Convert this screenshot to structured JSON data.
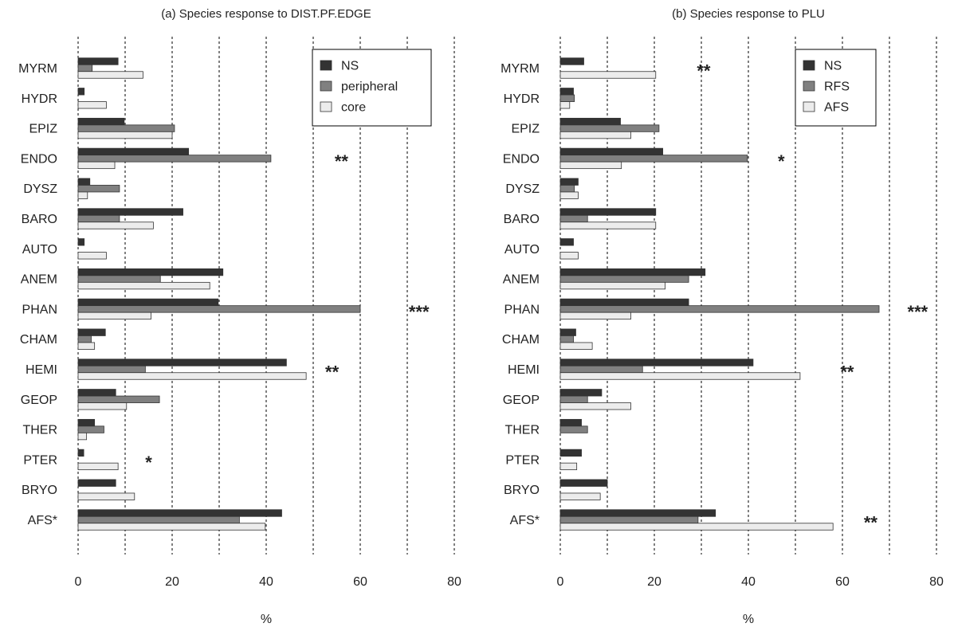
{
  "chart_data": [
    {
      "type": "bar",
      "orientation": "horizontal",
      "title": "(a) Species response to DIST.PF.EDGE",
      "xlabel": "%",
      "xlim": [
        0,
        80
      ],
      "xticks": [
        0,
        20,
        40,
        60,
        80
      ],
      "grid": "vertical dashed every 10",
      "legend_position": "top-right",
      "categories": [
        "MYRM",
        "HYDR",
        "EPIZ",
        "ENDO",
        "DYSZ",
        "BARO",
        "AUTO",
        "ANEM",
        "PHAN",
        "CHAM",
        "HEMI",
        "GEOP",
        "THER",
        "PTER",
        "BRYO",
        "AFS*"
      ],
      "series": [
        {
          "name": "NS",
          "color": "#333333",
          "values": [
            8.5,
            1.3,
            9.8,
            23.5,
            2.5,
            22.3,
            1.3,
            30.8,
            29.8,
            5.8,
            44.3,
            8.0,
            3.5,
            1.2,
            8.0,
            43.3
          ]
        },
        {
          "name": "peripheral",
          "color": "#808080",
          "values": [
            3.0,
            0,
            20.5,
            41.0,
            8.8,
            8.8,
            0,
            17.5,
            60.0,
            2.8,
            14.3,
            17.3,
            5.5,
            0,
            0,
            34.3
          ]
        },
        {
          "name": "core",
          "color": "#ececec",
          "values": [
            13.8,
            6.0,
            20.0,
            7.8,
            2.0,
            16.0,
            6.0,
            28.0,
            15.5,
            3.5,
            48.5,
            10.3,
            1.8,
            8.5,
            12.0,
            39.8
          ]
        }
      ],
      "annotations": [
        {
          "category": "ENDO",
          "x": 56,
          "text": "**"
        },
        {
          "category": "PHAN",
          "x": 72.5,
          "text": "***"
        },
        {
          "category": "HEMI",
          "x": 54,
          "text": "**"
        },
        {
          "category": "PTER",
          "x": 15,
          "text": "*"
        }
      ]
    },
    {
      "type": "bar",
      "orientation": "horizontal",
      "title": "(b) Species response to PLU",
      "xlabel": "%",
      "xlim": [
        0,
        80
      ],
      "xticks": [
        0,
        20,
        40,
        60,
        80
      ],
      "grid": "vertical dashed every 10",
      "legend_position": "top-right",
      "categories": [
        "MYRM",
        "HYDR",
        "EPIZ",
        "ENDO",
        "DYSZ",
        "BARO",
        "AUTO",
        "ANEM",
        "PHAN",
        "CHAM",
        "HEMI",
        "GEOP",
        "THER",
        "PTER",
        "BRYO",
        "AFS*"
      ],
      "series": [
        {
          "name": "NS",
          "color": "#333333",
          "values": [
            5.0,
            2.8,
            12.8,
            21.8,
            3.8,
            20.3,
            2.8,
            30.8,
            27.3,
            3.3,
            41.0,
            8.8,
            4.5,
            4.5,
            10.0,
            33.0
          ]
        },
        {
          "name": "RFS",
          "color": "#808080",
          "values": [
            0,
            3.0,
            21.0,
            39.8,
            3.0,
            5.8,
            0,
            27.3,
            67.8,
            2.8,
            17.5,
            5.8,
            5.8,
            0,
            0,
            29.3
          ]
        },
        {
          "name": "AFS",
          "color": "#ececec",
          "values": [
            20.3,
            2.0,
            15.0,
            13.0,
            3.8,
            20.3,
            3.8,
            22.3,
            15.0,
            6.8,
            51.0,
            15.0,
            0,
            3.5,
            8.5,
            58.0
          ]
        }
      ],
      "annotations": [
        {
          "category": "MYRM",
          "x": 30.5,
          "text": "**"
        },
        {
          "category": "ENDO",
          "x": 47,
          "text": "*"
        },
        {
          "category": "PHAN",
          "x": 76,
          "text": "***"
        },
        {
          "category": "HEMI",
          "x": 61,
          "text": "**"
        },
        {
          "category": "AFS*",
          "x": 66,
          "text": "**"
        }
      ]
    }
  ]
}
